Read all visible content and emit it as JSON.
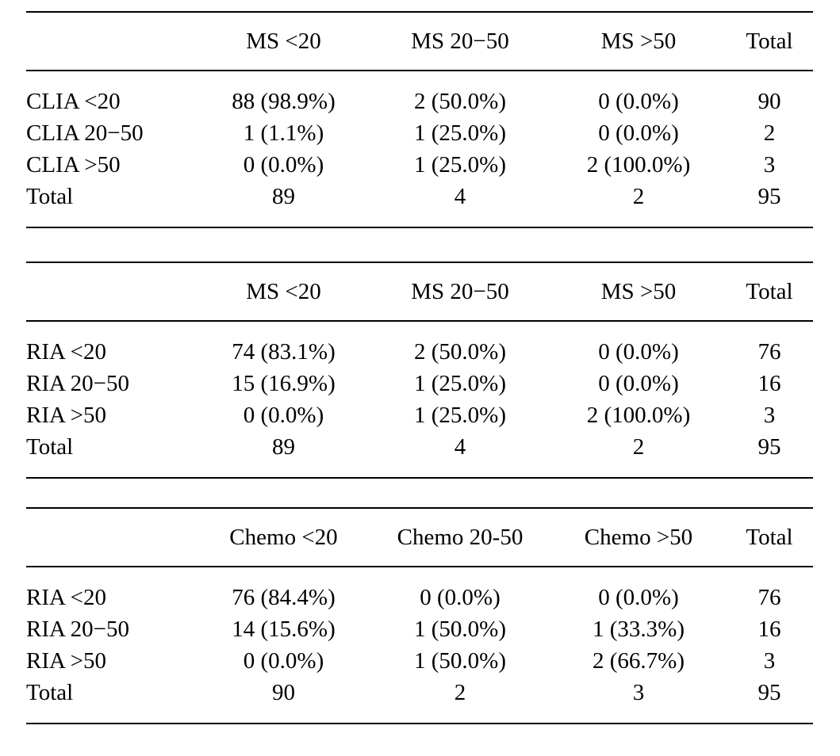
{
  "colors": {
    "background": "#ffffff",
    "text": "#000000",
    "rule": "#000000"
  },
  "tables": [
    {
      "name": "clia-vs-ms-concordance",
      "columns": [
        "",
        "MS <20",
        "MS 20−50",
        "MS >50",
        "Total"
      ],
      "rows": [
        [
          "CLIA <20",
          "88 (98.9%)",
          "2 (50.0%)",
          "0 (0.0%)",
          "90"
        ],
        [
          "CLIA 20−50",
          "1 (1.1%)",
          "1 (25.0%)",
          "0 (0.0%)",
          "2"
        ],
        [
          "CLIA >50",
          "0 (0.0%)",
          "1 (25.0%)",
          "2 (100.0%)",
          "3"
        ],
        [
          "Total",
          "89",
          "4",
          "2",
          "95"
        ]
      ]
    },
    {
      "name": "ria-vs-ms-concordance",
      "columns": [
        "",
        "MS <20",
        "MS 20−50",
        "MS >50",
        "Total"
      ],
      "rows": [
        [
          "RIA <20",
          "74 (83.1%)",
          "2 (50.0%)",
          "0 (0.0%)",
          "76"
        ],
        [
          "RIA 20−50",
          "15 (16.9%)",
          "1 (25.0%)",
          "0 (0.0%)",
          "16"
        ],
        [
          "RIA >50",
          "0 (0.0%)",
          "1 (25.0%)",
          "2 (100.0%)",
          "3"
        ],
        [
          "Total",
          "89",
          "4",
          "2",
          "95"
        ]
      ]
    },
    {
      "name": "ria-vs-chemo-concordance",
      "columns": [
        "",
        "Chemo <20",
        "Chemo 20-50",
        "Chemo >50",
        "Total"
      ],
      "rows": [
        [
          "RIA <20",
          "76 (84.4%)",
          "0 (0.0%)",
          "0 (0.0%)",
          "76"
        ],
        [
          "RIA 20−50",
          "14 (15.6%)",
          "1 (50.0%)",
          "1 (33.3%)",
          "16"
        ],
        [
          "RIA >50",
          "0 (0.0%)",
          "1 (50.0%)",
          "2 (66.7%)",
          "3"
        ],
        [
          "Total",
          "90",
          "2",
          "3",
          "95"
        ]
      ]
    }
  ]
}
